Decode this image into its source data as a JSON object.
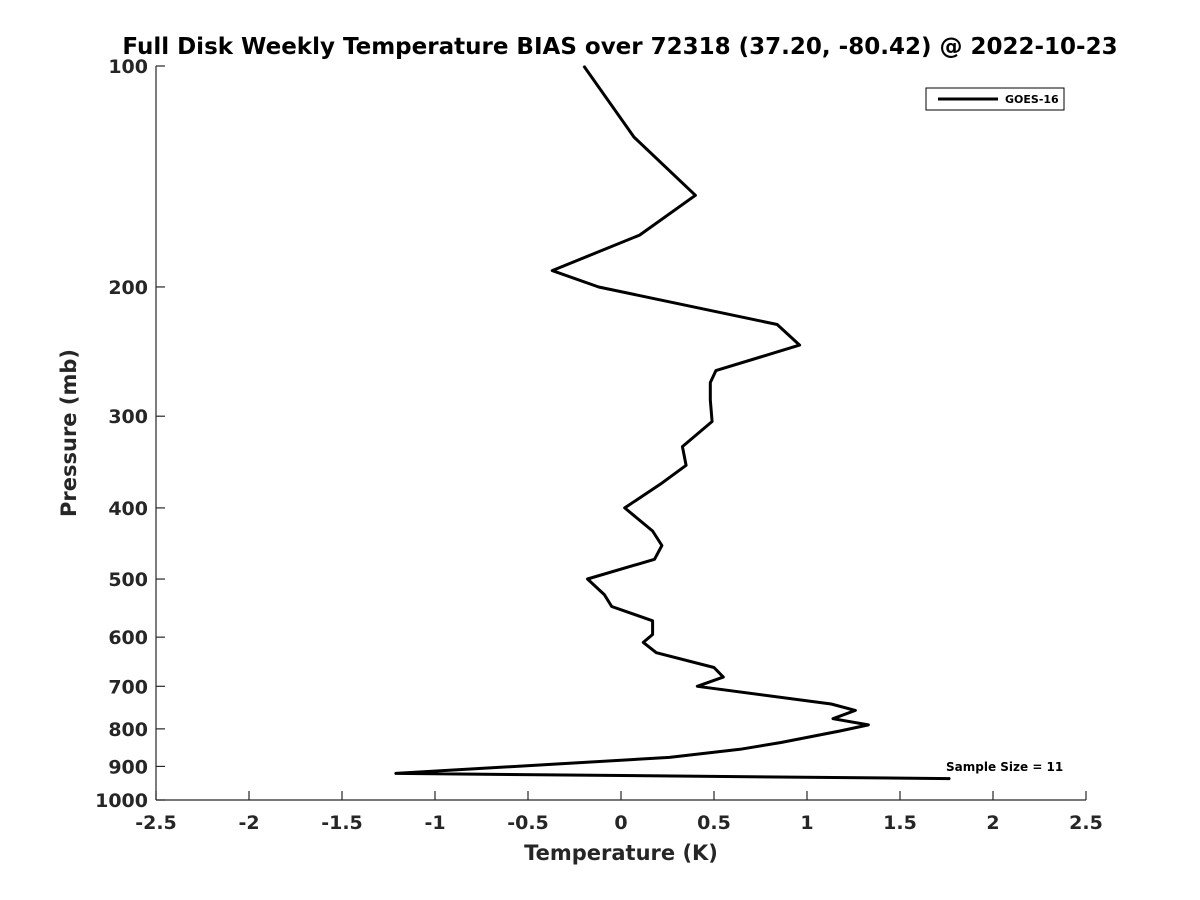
{
  "chart_data": {
    "type": "line",
    "title": "Full Disk Weekly Temperature BIAS over 72318 (37.20, -80.42) @ 2022-10-23",
    "xlabel": "Temperature (K)",
    "ylabel": "Pressure (mb)",
    "xlim": [
      -2.5,
      2.5
    ],
    "ylim": [
      100,
      1000
    ],
    "y_scale": "log",
    "y_reversed": true,
    "x_ticks": [
      "-2.5",
      "-2",
      "-1.5",
      "-1",
      "-0.5",
      "0",
      "0.5",
      "1",
      "1.5",
      "2",
      "2.5"
    ],
    "y_ticks": [
      "100",
      "200",
      "300",
      "400",
      "500",
      "600",
      "700",
      "800",
      "900",
      "1000"
    ],
    "grid": false,
    "legend_position": "top-right",
    "annotation": "Sample Size = 11",
    "series": [
      {
        "name": "GOES-16",
        "color": "#000000",
        "points": [
          [
            -0.2,
            100
          ],
          [
            0.07,
            125
          ],
          [
            0.4,
            150
          ],
          [
            0.1,
            170
          ],
          [
            -0.37,
            190
          ],
          [
            -0.12,
            200
          ],
          [
            0.84,
            225
          ],
          [
            0.96,
            240
          ],
          [
            0.51,
            260
          ],
          [
            0.48,
            270
          ],
          [
            0.48,
            285
          ],
          [
            0.49,
            305
          ],
          [
            0.33,
            330
          ],
          [
            0.35,
            350
          ],
          [
            0.22,
            370
          ],
          [
            0.02,
            400
          ],
          [
            0.17,
            430
          ],
          [
            0.22,
            450
          ],
          [
            0.18,
            470
          ],
          [
            -0.18,
            500
          ],
          [
            -0.09,
            525
          ],
          [
            -0.05,
            545
          ],
          [
            0.17,
            570
          ],
          [
            0.17,
            595
          ],
          [
            0.12,
            610
          ],
          [
            0.19,
            630
          ],
          [
            0.5,
            660
          ],
          [
            0.55,
            680
          ],
          [
            0.41,
            700
          ],
          [
            1.13,
            740
          ],
          [
            1.26,
            755
          ],
          [
            1.14,
            775
          ],
          [
            1.33,
            790
          ],
          [
            1.18,
            805
          ],
          [
            0.86,
            835
          ],
          [
            0.64,
            853
          ],
          [
            0.26,
            875
          ],
          [
            -1.21,
            920
          ],
          [
            1.77,
            935
          ]
        ]
      }
    ]
  }
}
